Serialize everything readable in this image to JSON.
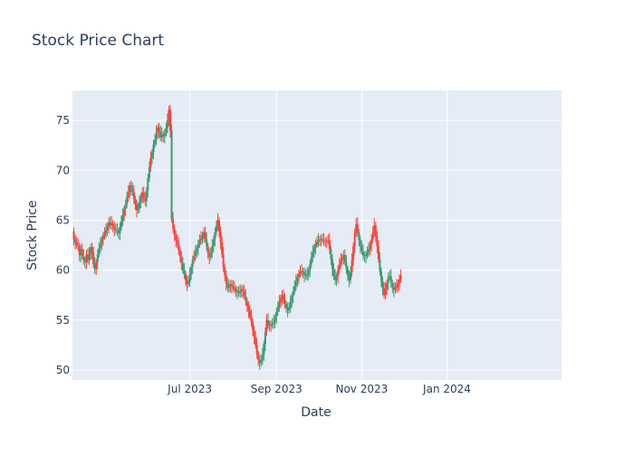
{
  "title": "Stock Price Chart",
  "colors": {
    "plot_bg": "#e5ecf6",
    "grid": "#ffffff",
    "increasing": "#3d9970",
    "decreasing": "#ff4136",
    "text": "#2a3f5f"
  },
  "chart_data": {
    "type": "candlestick",
    "title": "Stock Price Chart",
    "xlabel": "Date",
    "ylabel": "Stock Price",
    "xlim": [
      "2023-04-08",
      "2024-03-23"
    ],
    "ylim": [
      49,
      78
    ],
    "grid": true,
    "legend": "none",
    "x_ticks": [
      {
        "date": "2023-07-01",
        "label": "Jul 2023"
      },
      {
        "date": "2023-09-01",
        "label": "Sep 2023"
      },
      {
        "date": "2023-11-01",
        "label": "Nov 2023"
      },
      {
        "date": "2024-01-01",
        "label": "Jan 2024"
      }
    ],
    "y_ticks": [
      50,
      55,
      60,
      65,
      70,
      75
    ],
    "series": [
      {
        "start_date": "2023-04-09",
        "close": [
          63.1,
          62.8,
          62.5,
          62.4,
          61.5,
          62.1,
          61.4,
          61.0,
          60.8,
          61.6,
          61.0,
          61.6,
          62.3,
          61.8,
          60.6,
          60.1,
          60.8,
          61.6,
          62.2,
          62.6,
          63.1,
          63.4,
          63.7,
          64.0,
          64.4,
          64.8,
          64.5,
          64.7,
          64.4,
          64.1,
          64.0,
          63.9,
          63.7,
          64.3,
          64.9,
          65.5,
          66.1,
          66.6,
          67.3,
          67.8,
          68.5,
          68.2,
          67.8,
          67.1,
          66.6,
          66.0,
          66.2,
          66.8,
          67.4,
          67.8,
          67.1,
          66.9,
          68.0,
          69.2,
          70.3,
          71.2,
          71.8,
          72.6,
          73.0,
          73.8,
          74.3,
          73.9,
          73.3,
          73.6,
          73.4,
          73.7,
          74.2,
          75.0,
          76.1,
          74.0,
          65.1,
          64.2,
          63.5,
          63.0,
          62.6,
          62.0,
          61.4,
          60.7,
          60.0,
          59.6,
          59.0,
          58.6,
          58.8,
          59.6,
          60.3,
          61.0,
          61.4,
          61.8,
          62.2,
          62.6,
          63.0,
          63.2,
          63.5,
          63.8,
          63.1,
          62.4,
          61.7,
          61.3,
          61.7,
          62.4,
          63.1,
          63.8,
          64.4,
          65.0,
          63.9,
          62.8,
          61.6,
          60.3,
          59.5,
          58.7,
          58.2,
          58.4,
          58.6,
          58.4,
          58.2,
          58.1,
          57.9,
          57.8,
          57.7,
          57.9,
          58.1,
          57.9,
          57.4,
          56.9,
          56.4,
          55.9,
          55.4,
          54.8,
          54.0,
          53.3,
          52.5,
          51.6,
          51.0,
          50.7,
          51.0,
          51.5,
          52.6,
          53.8,
          55.0,
          54.6,
          54.5,
          54.5,
          54.6,
          54.8,
          55.3,
          55.8,
          56.3,
          56.8,
          57.2,
          57.5,
          57.0,
          56.6,
          56.3,
          56.0,
          56.2,
          56.8,
          57.4,
          57.9,
          58.4,
          58.9,
          59.3,
          59.6,
          59.9,
          59.9,
          59.8,
          59.5,
          59.4,
          59.6,
          60.0,
          60.6,
          61.3,
          61.8,
          62.3,
          62.6,
          62.8,
          63.0,
          63.1,
          63.1,
          63.0,
          62.9,
          62.9,
          62.9,
          63.0,
          62.1,
          61.1,
          60.1,
          59.4,
          59.0,
          59.4,
          60.0,
          60.6,
          61.0,
          61.3,
          61.5,
          60.8,
          60.1,
          59.5,
          59.0,
          59.8,
          61.0,
          62.4,
          63.7,
          64.6,
          63.8,
          63.0,
          62.4,
          61.9,
          61.5,
          61.4,
          61.5,
          61.8,
          62.1,
          62.6,
          63.1,
          63.8,
          64.5,
          63.4,
          62.4,
          61.1,
          59.9,
          58.9,
          58.2,
          57.5,
          58.1,
          58.7,
          59.3,
          59.4,
          58.7,
          58.3,
          58.0,
          58.2,
          58.4,
          58.7,
          59.1,
          59.5
        ],
        "up": [
          0,
          1,
          0,
          0,
          0,
          1,
          0,
          1,
          1,
          0,
          0,
          1,
          1,
          0,
          0,
          1,
          0,
          1,
          1,
          1,
          0,
          1,
          0,
          1,
          1,
          0,
          1,
          0,
          0,
          0,
          1,
          1,
          1,
          1,
          1,
          1,
          0,
          1,
          1,
          0,
          1,
          0,
          1,
          0,
          0,
          0,
          1,
          1,
          1,
          0,
          0,
          0,
          1,
          1,
          1,
          0,
          1,
          1,
          1,
          1,
          0,
          0,
          1,
          0,
          1,
          1,
          1,
          1,
          0,
          0,
          1,
          0,
          0,
          0,
          0,
          0,
          0,
          0,
          1,
          1,
          0,
          0,
          1,
          1,
          1,
          1,
          0,
          1,
          1,
          1,
          1,
          0,
          1,
          0,
          0,
          1,
          0,
          0,
          1,
          1,
          1,
          1,
          1,
          0,
          0,
          0,
          0,
          0,
          0,
          0,
          1,
          1,
          0,
          0,
          1,
          0,
          0,
          1,
          1,
          1,
          0,
          0,
          0,
          1,
          0,
          0,
          0,
          0,
          0,
          0,
          0,
          0,
          0,
          1,
          1,
          1,
          1,
          1,
          0,
          1,
          0,
          0,
          1,
          1,
          1,
          1,
          1,
          1,
          0,
          0,
          0,
          0,
          1,
          1,
          1,
          1,
          1,
          1,
          1,
          1,
          1,
          0,
          0,
          0,
          1,
          1,
          1,
          1,
          1,
          1,
          1,
          1,
          1,
          1,
          0,
          1,
          0,
          0,
          1,
          0,
          0,
          0,
          0,
          0,
          1,
          1,
          1,
          1,
          1,
          0,
          0,
          0,
          0,
          0,
          1,
          1,
          1,
          1,
          1,
          0,
          0,
          0,
          0,
          0,
          1,
          1,
          1,
          1,
          1,
          1,
          1,
          1,
          0,
          0,
          0,
          0,
          0,
          0,
          0,
          1,
          1,
          1,
          0,
          0,
          0,
          1,
          1,
          1,
          1,
          1
        ]
      }
    ]
  }
}
